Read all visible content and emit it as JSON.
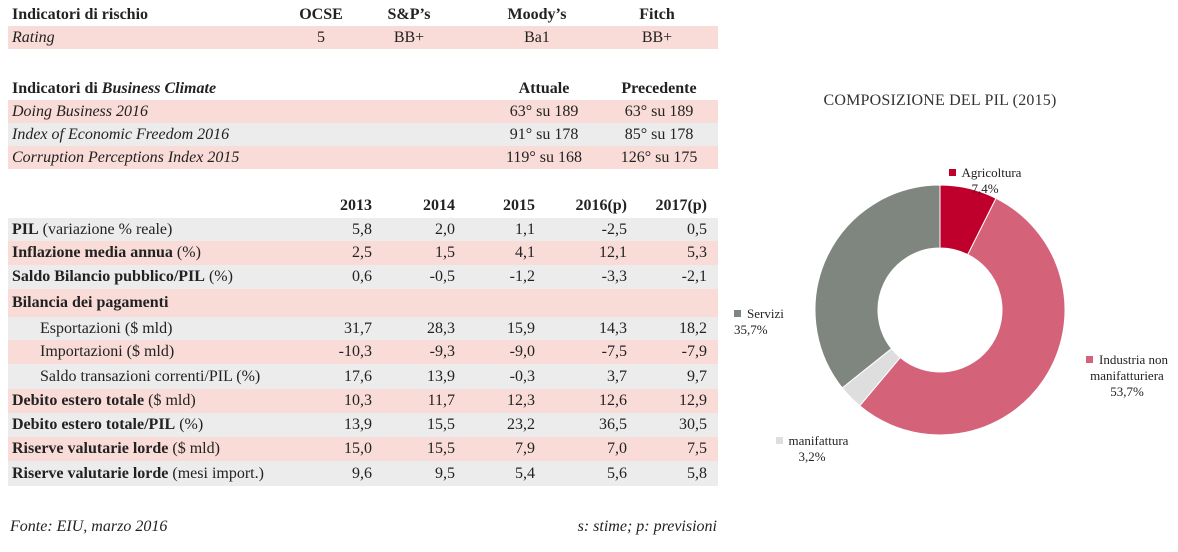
{
  "risk": {
    "headers": [
      "Indicatori di rischio",
      "OCSE",
      "S&P’s",
      "Moody’s",
      "Fitch"
    ],
    "row": [
      "Rating",
      "5",
      "BB+",
      "Ba1",
      "BB+"
    ]
  },
  "climate": {
    "header_prefix": "Indicatori di ",
    "header_italic": "Business Climate",
    "col_actual": "Attuale",
    "col_prev": "Precedente",
    "rows": [
      [
        "Doing Business 2016",
        "63° su 189",
        "63° su 189"
      ],
      [
        "Index of Economic Freedom 2016",
        "91° su 178",
        "85° su 178"
      ],
      [
        "Corruption Perceptions Index 2015",
        "119° su 168",
        "126° su 175"
      ]
    ]
  },
  "macro": {
    "years": [
      "2013",
      "2014",
      "2015",
      "2016(p)",
      "2017(p)"
    ],
    "rows": [
      {
        "bold": "PIL",
        "rest": " (variazione % reale)",
        "values": [
          "5,8",
          "2,0",
          "1,1",
          "-2,5",
          "0,5"
        ]
      },
      {
        "bold": "Inflazione media annua",
        "rest": " (%)",
        "values": [
          "2,5",
          "1,5",
          "4,1",
          "12,1",
          "5,3"
        ]
      },
      {
        "bold": "Saldo Bilancio pubblico/PIL",
        "rest": " (%)",
        "values": [
          "0,6",
          "-0,5",
          "-1,2",
          "-3,3",
          "-2,1"
        ]
      },
      {
        "bold": "Bilancia dei pagamenti",
        "rest": "",
        "values": [
          "",
          "",
          "",
          "",
          ""
        ]
      },
      {
        "bold": "",
        "rest": "Esportazioni ($ mld)",
        "values": [
          "31,7",
          "28,3",
          "15,9",
          "14,3",
          "18,2"
        ]
      },
      {
        "bold": "",
        "rest": "Importazioni ($ mld)",
        "values": [
          "-10,3",
          "-9,3",
          "-9,0",
          "-7,5",
          "-7,9"
        ]
      },
      {
        "bold": "",
        "rest": "Saldo transazioni correnti/PIL (%)",
        "values": [
          "17,6",
          "13,9",
          "-0,3",
          "3,7",
          "9,7"
        ]
      },
      {
        "bold": "Debito estero totale",
        "rest": " ($ mld)",
        "values": [
          "10,3",
          "11,7",
          "12,3",
          "12,6",
          "12,9"
        ]
      },
      {
        "bold": "Debito estero totale/PIL",
        "rest": " (%)",
        "values": [
          "13,9",
          "15,5",
          "23,2",
          "36,5",
          "30,5"
        ]
      },
      {
        "bold": "Riserve valutarie lorde",
        "rest": " ($ mld)",
        "values": [
          "15,0",
          "15,5",
          "7,9",
          "7,0",
          "7,5"
        ]
      },
      {
        "bold": "Riserve valutarie lorde",
        "rest": " (mesi import.)",
        "values": [
          "9,6",
          "9,5",
          "5,4",
          "5,6",
          "5,8"
        ]
      }
    ]
  },
  "footer": {
    "source": "Fonte: EIU, marzo 2016",
    "note": "s: stime; p: previsioni"
  },
  "chart_data": {
    "type": "pie",
    "title": "COMPOSIZIONE DEL PIL (2015)",
    "donut": true,
    "slices": [
      {
        "label": "Agricoltura",
        "value": 7.4,
        "value_label": "7,4%",
        "color": "#c0002c"
      },
      {
        "label": "Industria non manifatturiera",
        "value": 53.7,
        "value_label": "53,7%",
        "color": "#d4637a"
      },
      {
        "label": "manifattura",
        "value": 3.2,
        "value_label": "3,2%",
        "color": "#dedede"
      },
      {
        "label": "Servizi",
        "value": 35.7,
        "value_label": "35,7%",
        "color": "#7f8680"
      }
    ]
  }
}
